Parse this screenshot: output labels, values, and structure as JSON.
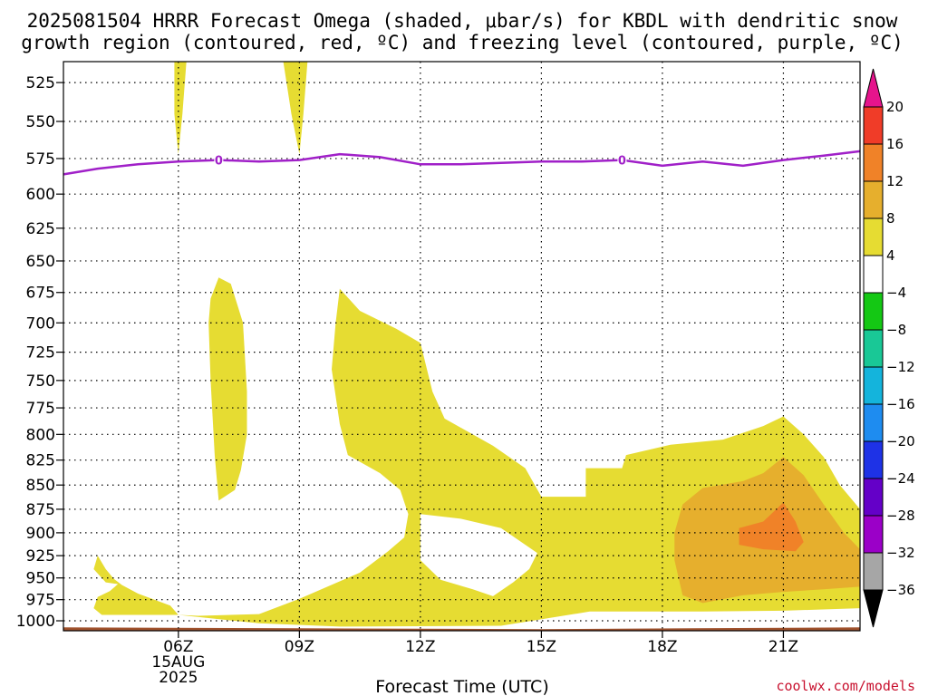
{
  "header": {
    "title_line1": "2025081504 HRRR Forecast Omega (shaded, μbar/s) for KBDL with dendritic snow",
    "title_line2": "growth region (contoured, red, ºC) and freezing level (contoured, purple, ºC)"
  },
  "footer": {
    "credit": "coolwx.com/models"
  },
  "chart_data": {
    "type": "heatmap",
    "title": "2025081504 HRRR Forecast Omega (shaded, μbar/s) for KBDL with dendritic snow growth region (contoured, red, ºC) and freezing level (contoured, purple, ºC)",
    "xlabel": "Forecast Time (UTC)",
    "ylabel": "",
    "x_unit": "UTC hour",
    "xlim": [
      3.15,
      22.9
    ],
    "x_ticks": [
      {
        "value": 6,
        "label": "06Z",
        "sublabels": [
          "15AUG",
          "2025"
        ]
      },
      {
        "value": 9,
        "label": "09Z",
        "sublabels": []
      },
      {
        "value": 12,
        "label": "12Z",
        "sublabels": []
      },
      {
        "value": 15,
        "label": "15Z",
        "sublabels": []
      },
      {
        "value": 18,
        "label": "18Z",
        "sublabels": []
      },
      {
        "value": 21,
        "label": "21Z",
        "sublabels": []
      }
    ],
    "y_unit": "hPa",
    "ylim": [
      1012,
      512
    ],
    "y_log": true,
    "y_ticks": [
      525,
      550,
      575,
      600,
      625,
      650,
      675,
      700,
      725,
      750,
      775,
      800,
      825,
      850,
      875,
      900,
      925,
      950,
      975,
      1000
    ],
    "grid": true,
    "colorbar": {
      "position": "right",
      "levels": [
        -36,
        -32,
        -28,
        -24,
        -20,
        -16,
        -12,
        -8,
        -4,
        4,
        8,
        12,
        16,
        20
      ],
      "labels": [
        "-36",
        "-32",
        "-28",
        "-24",
        "-20",
        "-16",
        "-12",
        "-8",
        "-4",
        "4",
        "8",
        "12",
        "16",
        "20"
      ],
      "colors_low_to_high": [
        "#000000",
        "#a6a6a6",
        "#9b00c8",
        "#6400c8",
        "#1e32e6",
        "#1e8cf0",
        "#14b4dc",
        "#19c896",
        "#14c814",
        "#ffffff",
        "#e6dc32",
        "#e6af2d",
        "#f08228",
        "#f03c28",
        "#e6148c"
      ]
    },
    "freezing_level": {
      "color": "#a020c8",
      "label": "0",
      "label_at_x": [
        7.0,
        17.0
      ],
      "points": [
        [
          3.15,
          586
        ],
        [
          4.0,
          582
        ],
        [
          5.0,
          579
        ],
        [
          6.0,
          577
        ],
        [
          7.0,
          576
        ],
        [
          8.0,
          577
        ],
        [
          9.0,
          576
        ],
        [
          10.0,
          572
        ],
        [
          11.0,
          574
        ],
        [
          12.0,
          579
        ],
        [
          13.0,
          579
        ],
        [
          14.0,
          578
        ],
        [
          15.0,
          577
        ],
        [
          16.0,
          577
        ],
        [
          17.0,
          576
        ],
        [
          18.0,
          580
        ],
        [
          19.0,
          577
        ],
        [
          20.0,
          580
        ],
        [
          21.0,
          576
        ],
        [
          22.0,
          573
        ],
        [
          22.9,
          570
        ]
      ]
    },
    "regions": [
      {
        "level": "4 to 8",
        "color": "#e6dc32",
        "points": [
          [
            5.9,
            512
          ],
          [
            6.2,
            512
          ],
          [
            6.1,
            545
          ],
          [
            6.0,
            572
          ],
          [
            5.9,
            545
          ]
        ]
      },
      {
        "level": "4 to 8",
        "color": "#e6dc32",
        "points": [
          [
            8.6,
            512
          ],
          [
            9.2,
            512
          ],
          [
            9.1,
            545
          ],
          [
            9.0,
            572
          ],
          [
            8.8,
            545
          ]
        ]
      },
      {
        "level": "4 to 8",
        "color": "#e6dc32",
        "points": [
          [
            7.0,
            663
          ],
          [
            7.3,
            668
          ],
          [
            7.6,
            700
          ],
          [
            7.7,
            760
          ],
          [
            7.7,
            800
          ],
          [
            7.55,
            835
          ],
          [
            7.4,
            855
          ],
          [
            7.0,
            866
          ],
          [
            6.9,
            820
          ],
          [
            6.8,
            750
          ],
          [
            6.75,
            700
          ],
          [
            6.8,
            680
          ]
        ]
      },
      {
        "level": "4 to 8",
        "color": "#e6dc32",
        "points": [
          [
            10.0,
            672
          ],
          [
            10.5,
            690
          ],
          [
            11.4,
            705
          ],
          [
            12.0,
            717
          ],
          [
            12.3,
            760
          ],
          [
            12.6,
            785
          ],
          [
            13.8,
            811
          ],
          [
            14.6,
            833
          ],
          [
            15.0,
            862
          ],
          [
            16.1,
            862
          ],
          [
            16.1,
            833
          ],
          [
            17.0,
            833
          ],
          [
            17.1,
            820
          ],
          [
            18.2,
            810
          ],
          [
            19.5,
            805
          ],
          [
            20.5,
            792
          ],
          [
            21.0,
            783
          ],
          [
            21.5,
            800
          ],
          [
            22.0,
            822
          ],
          [
            22.4,
            850
          ],
          [
            22.9,
            875
          ],
          [
            22.9,
            985
          ],
          [
            21.0,
            988
          ],
          [
            19.0,
            989
          ],
          [
            18.5,
            989
          ],
          [
            16.2,
            989
          ],
          [
            14.0,
            1006
          ],
          [
            10.0,
            1007
          ],
          [
            8.0,
            1003
          ],
          [
            6.0,
            993
          ],
          [
            5.0,
            993
          ],
          [
            4.1,
            993
          ],
          [
            3.9,
            985
          ],
          [
            4.0,
            972
          ],
          [
            4.3,
            965
          ],
          [
            4.5,
            957
          ],
          [
            4.2,
            955
          ],
          [
            3.9,
            940
          ],
          [
            4.0,
            925
          ],
          [
            4.2,
            940
          ],
          [
            4.4,
            951
          ],
          [
            4.6,
            958
          ],
          [
            5.0,
            968
          ],
          [
            5.8,
            982
          ],
          [
            6.0,
            993
          ],
          [
            6.5,
            994
          ],
          [
            8.0,
            992
          ],
          [
            9.0,
            974
          ],
          [
            10.5,
            944
          ],
          [
            11.2,
            920
          ],
          [
            11.6,
            905
          ],
          [
            11.7,
            880
          ],
          [
            11.5,
            855
          ],
          [
            11.0,
            838
          ],
          [
            10.2,
            820
          ],
          [
            10.0,
            790
          ],
          [
            9.8,
            740
          ],
          [
            9.9,
            700
          ]
        ]
      },
      {
        "level": "white hole (-4 to 4)",
        "color": "#ffffff",
        "points": [
          [
            12.0,
            880
          ],
          [
            13.0,
            885
          ],
          [
            14.0,
            895
          ],
          [
            14.9,
            922
          ],
          [
            14.7,
            940
          ],
          [
            14.3,
            955
          ],
          [
            13.8,
            971
          ],
          [
            13.3,
            963
          ],
          [
            12.5,
            952
          ],
          [
            12.0,
            930
          ]
        ]
      },
      {
        "level": "white hole (-4 to 4)",
        "color": "#ffffff",
        "points": [
          [
            3.15,
            1012
          ],
          [
            22.9,
            1012
          ],
          [
            22.9,
            1000
          ],
          [
            22.0,
            1001
          ],
          [
            20.0,
            1004
          ],
          [
            18.5,
            1004
          ],
          [
            16.2,
            1004
          ],
          [
            14.0,
            1013
          ],
          [
            10.0,
            1013
          ],
          [
            8.0,
            1011
          ],
          [
            6.0,
            1002
          ],
          [
            4.1,
            1001
          ],
          [
            3.15,
            1000
          ]
        ]
      },
      {
        "level": "8 to 12",
        "color": "#e6af2d",
        "points": [
          [
            18.5,
            870
          ],
          [
            19.0,
            853
          ],
          [
            20.0,
            846
          ],
          [
            20.5,
            838
          ],
          [
            21.0,
            822
          ],
          [
            21.5,
            840
          ],
          [
            22.0,
            870
          ],
          [
            22.5,
            900
          ],
          [
            22.9,
            918
          ],
          [
            22.9,
            960
          ],
          [
            22.0,
            963
          ],
          [
            21.0,
            966
          ],
          [
            20.0,
            970
          ],
          [
            19.0,
            979
          ],
          [
            18.5,
            970
          ],
          [
            18.3,
            930
          ],
          [
            18.3,
            900
          ]
        ]
      },
      {
        "level": "12 to 16",
        "color": "#f08228",
        "points": [
          [
            19.9,
            895
          ],
          [
            20.5,
            888
          ],
          [
            21.0,
            868
          ],
          [
            21.3,
            888
          ],
          [
            21.5,
            910
          ],
          [
            21.3,
            920
          ],
          [
            20.5,
            918
          ],
          [
            19.9,
            913
          ]
        ]
      }
    ],
    "surface": {
      "color": "#a0522d",
      "points": [
        [
          3.15,
          1008
        ],
        [
          9.0,
          1009
        ],
        [
          15.0,
          1010
        ],
        [
          22.9,
          1008
        ]
      ]
    }
  }
}
